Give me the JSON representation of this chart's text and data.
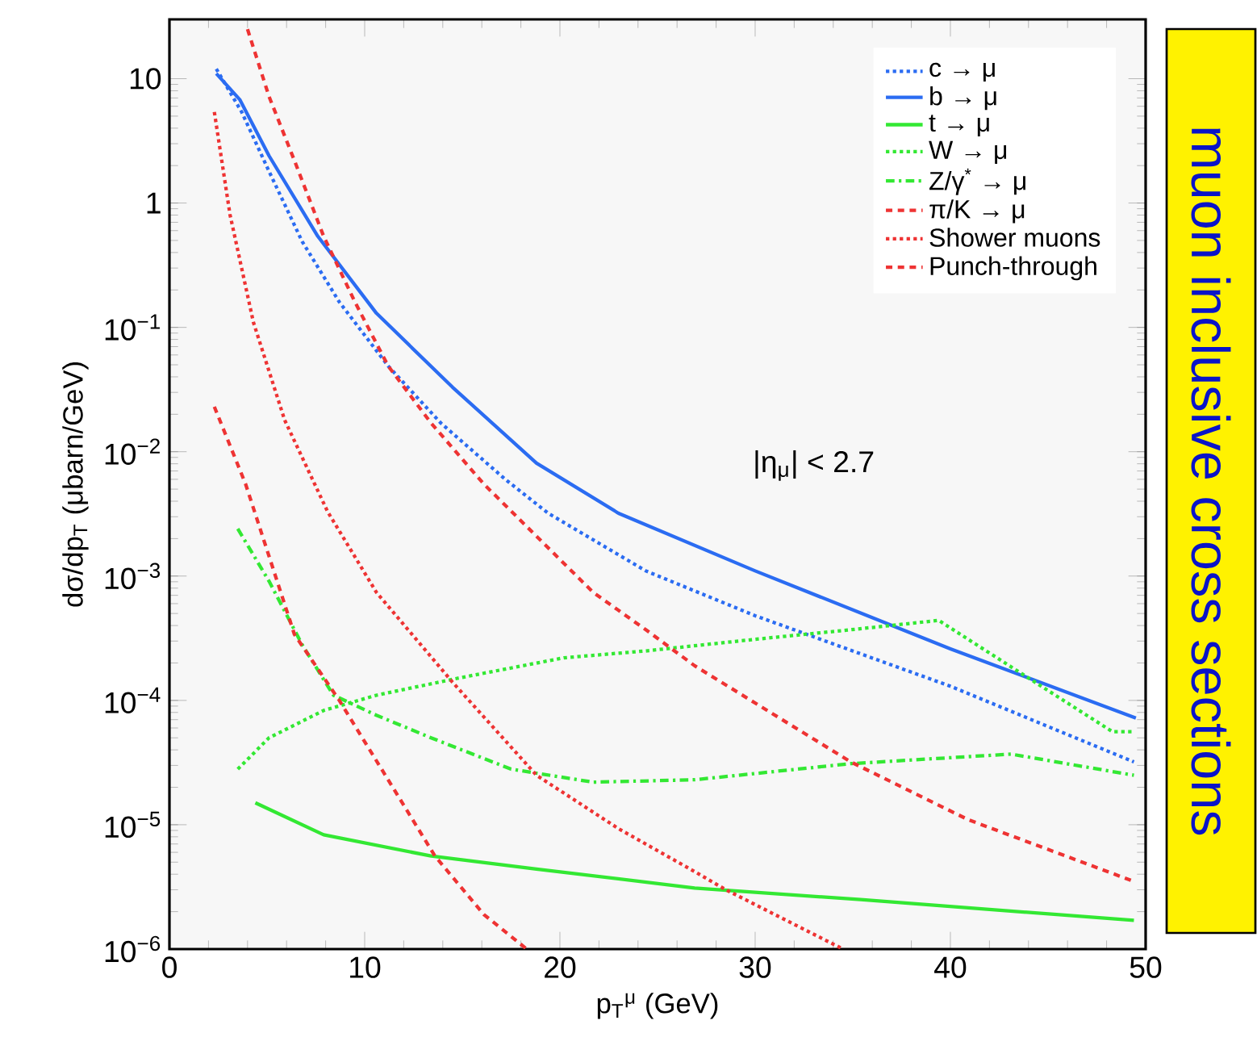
{
  "chart_data": {
    "type": "line",
    "xlabel": "p$_{T}$$^{μ}$ (GeV)",
    "ylabel": "dσ/dp$_{T}$ (μbarn/GeV)",
    "log": "y",
    "legend": "top right",
    "xlim": [
      0,
      50
    ],
    "ylim": [
      1e-06,
      30
    ],
    "xticks": [
      0,
      10,
      20,
      30,
      40,
      50
    ],
    "yticks": [
      {
        "value": 1e-06,
        "label": "10$^{−6}$"
      },
      {
        "value": 1e-05,
        "label": "10$^{−5}$"
      },
      {
        "value": 0.0001,
        "label": "10$^{−4}$"
      },
      {
        "value": 0.001,
        "label": "10$^{−3}$"
      },
      {
        "value": 0.01,
        "label": "10$^{−2}$"
      },
      {
        "value": 0.1,
        "label": "10$^{−1}$"
      },
      1,
      10
    ],
    "annotations": [
      "|η$_{μ}$| < 2.7",
      "muon inclusive cross sections"
    ],
    "series": [
      {
        "name": "c → μ",
        "color": "#2b6cf2",
        "line_style": "dotted",
        "x": [
          2.4,
          3.7,
          5.1,
          6.8,
          8.7,
          11.2,
          13.9,
          17.2,
          19.4,
          24.4,
          30,
          40,
          49.4
        ],
        "values": [
          12,
          5.4,
          1.8,
          0.49,
          0.16,
          0.049,
          0.017,
          0.006,
          0.0032,
          0.0011,
          0.00048,
          0.00013,
          3.2e-05
        ]
      },
      {
        "name": "b → μ",
        "color": "#2b6cf2",
        "line_style": "solid",
        "x": [
          2.4,
          3.6,
          5.1,
          7.6,
          10.6,
          14.5,
          18.8,
          23,
          30,
          40,
          49.5
        ],
        "values": [
          11,
          6.8,
          2.4,
          0.54,
          0.13,
          0.033,
          0.0081,
          0.0032,
          0.0011,
          0.00026,
          7.2e-05
        ]
      },
      {
        "name": "t → μ",
        "color": "#33e833",
        "line_style": "solid",
        "x": [
          4.4,
          7.9,
          13.4,
          18.8,
          26.9,
          35.4,
          49.4
        ],
        "values": [
          1.5e-05,
          8.3e-06,
          5.6e-06,
          4.4e-06,
          3.1e-06,
          2.5e-06,
          1.7e-06
        ]
      },
      {
        "name": "W → μ",
        "color": "#33e833",
        "line_style": "dotted",
        "x": [
          3.5,
          5.1,
          7.9,
          10.6,
          14.7,
          20.2,
          24.4,
          30,
          34.9,
          39.4,
          45,
          48.3,
          49.4
        ],
        "values": [
          2.8e-05,
          5e-05,
          8.3e-05,
          0.00011,
          0.00015,
          0.00022,
          0.00025,
          0.00031,
          0.00037,
          0.00044,
          0.00012,
          5.6e-05,
          5.6e-05
        ]
      },
      {
        "name": "Z/γ$^{*}$ → μ",
        "color": "#33e833",
        "line_style": "dashdot",
        "x": [
          3.5,
          5.1,
          6.8,
          8.4,
          10.6,
          13.4,
          17.5,
          21.7,
          26.9,
          34.9,
          43.1,
          49.4
        ],
        "values": [
          0.0024,
          0.00091,
          0.00028,
          0.00011,
          7.6e-05,
          5e-05,
          2.8e-05,
          2.2e-05,
          2.3e-05,
          3.1e-05,
          3.7e-05,
          2.5e-05
        ]
      },
      {
        "name": "π/K → μ",
        "color": "#ee3333",
        "line_style": "dashed",
        "x": [
          4.0,
          5.1,
          6.4,
          7.9,
          9.5,
          11.2,
          13.4,
          16.1,
          21.7,
          24.4,
          26.9,
          34.9,
          40.9,
          49.4
        ],
        "values": [
          25,
          7.2,
          2.2,
          0.54,
          0.16,
          0.049,
          0.017,
          0.0055,
          0.00074,
          0.00037,
          0.00019,
          3.2e-05,
          1.1e-05,
          3.5e-06
        ]
      },
      {
        "name": "Shower muons",
        "color": "#ee3333",
        "line_style": "dotted",
        "x": [
          2.3,
          3.1,
          4.3,
          5.9,
          8.1,
          10.6,
          14.5,
          18.8,
          23,
          26.9,
          28.5,
          34.5
        ],
        "values": [
          5.4,
          0.81,
          0.11,
          0.018,
          0.0033,
          0.00074,
          0.00014,
          2.5e-05,
          9.3e-06,
          4.2e-06,
          3e-06,
          1e-06
        ]
      },
      {
        "name": "Punch-through",
        "color": "#ee3333",
        "line_style": "dashed",
        "x": [
          2.3,
          3.9,
          6.4,
          8.7,
          11.2,
          13.6,
          16.1,
          18.3
        ],
        "values": [
          0.023,
          0.0055,
          0.00034,
          0.0001,
          2.3e-05,
          5.6e-06,
          1.9e-06,
          1e-06
        ]
      }
    ]
  }
}
